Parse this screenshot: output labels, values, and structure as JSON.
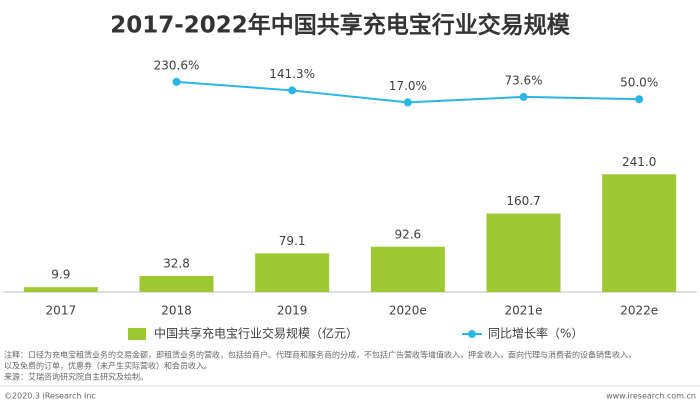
{
  "chart_data": {
    "type": "bar",
    "title": "2017-2022年中国共享充电宝行业交易规模",
    "categories": [
      "2017",
      "2018",
      "2019",
      "2020e",
      "2021e",
      "2022e"
    ],
    "series": [
      {
        "name": "中国共享充电宝行业交易规模（亿元）",
        "type": "bar",
        "color": "#9dc832",
        "values": [
          9.9,
          32.8,
          79.1,
          92.6,
          160.7,
          241.0
        ],
        "value_labels": [
          "9.9",
          "32.8",
          "79.1",
          "92.6",
          "160.7",
          "241.0"
        ]
      },
      {
        "name": "同比增长率（%）",
        "type": "line",
        "axis": "y2",
        "color": "#2bb5e8",
        "values": [
          null,
          230.6,
          141.3,
          17.0,
          73.6,
          50.0
        ],
        "value_labels": [
          null,
          "230.6%",
          "141.3%",
          "17.0%",
          "73.6%",
          "50.0%"
        ]
      }
    ],
    "ylim": [
      0,
      260
    ],
    "y2lim": [
      0,
      250
    ],
    "grid": false
  },
  "notes": [
    "注释：口径为充电宝租赁业务的交易金额，即租赁业务的营收，包括给商户、代理商和服务商的分成，不包括广告营收等增值收入，押金收入，面向代理与消费者的设备销售收入，",
    "以及免费的订单，优惠券（未产生实际营收）和会员收入。",
    "来源：艾瑞咨询研究院自主研究及绘制。"
  ],
  "footer": {
    "left": "©2020.3 iResearch Inc",
    "right": "www.iresearch.com.cn"
  }
}
